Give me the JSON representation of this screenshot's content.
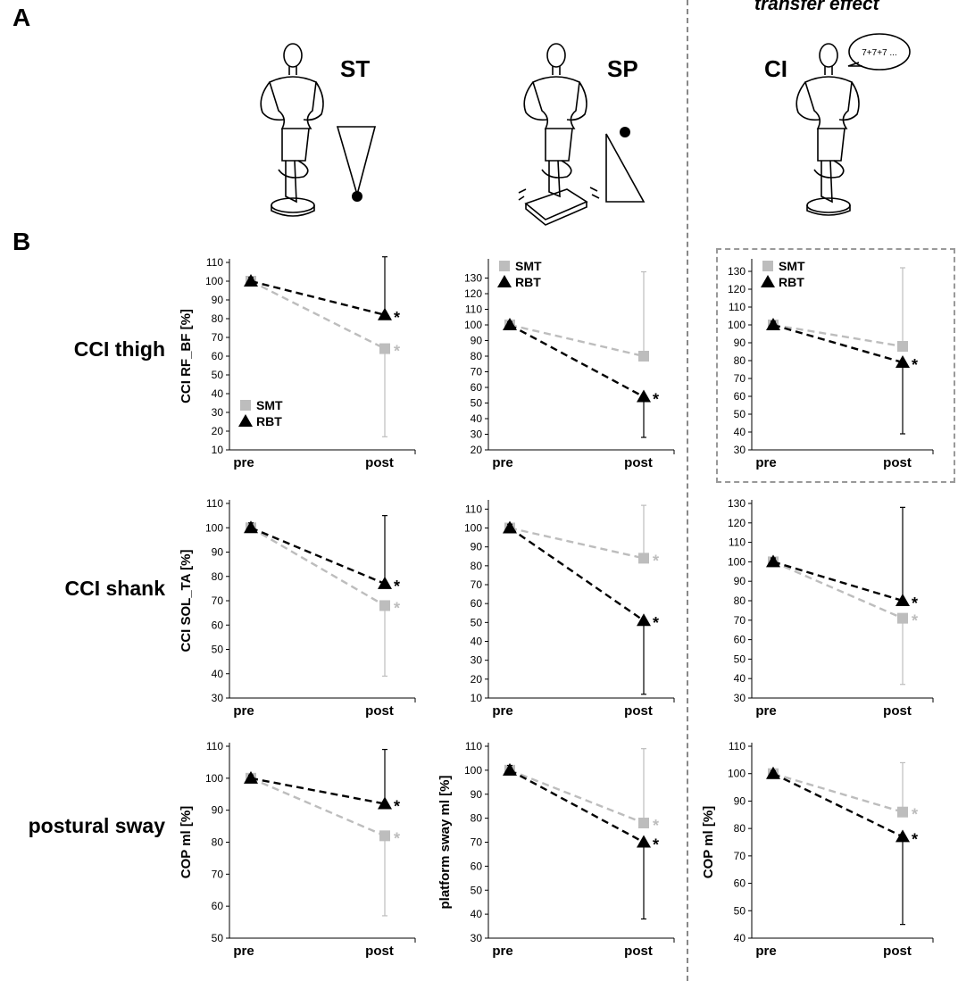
{
  "panel_labels": {
    "a": "A",
    "b": "B"
  },
  "header": {
    "transfer_effect": "transfer effect",
    "conditions": [
      "ST",
      "SP",
      "CI"
    ],
    "speech_bubble": "7+7+7 ..."
  },
  "row_labels": [
    "CCI thigh",
    "CCI shank",
    "postural sway"
  ],
  "colors": {
    "smt": "#bdbdbd",
    "rbt": "#000000",
    "divider": "#888888"
  },
  "legend": {
    "smt": "SMT",
    "rbt": "RBT"
  },
  "chart_data": [
    {
      "id": "thigh-st",
      "type": "line",
      "categories": [
        "pre",
        "post"
      ],
      "ylabel": "CCI  RF_BF [%]",
      "ylim": [
        10,
        110
      ],
      "yticks": [
        10,
        20,
        30,
        40,
        50,
        60,
        70,
        80,
        90,
        100,
        110
      ],
      "legend_position": "bottom-left",
      "series": [
        {
          "name": "SMT",
          "values": [
            100,
            64
          ],
          "error_upper": [
            102,
            null
          ],
          "error_lower": [
            null,
            17
          ],
          "significant": [
            false,
            true
          ]
        },
        {
          "name": "RBT",
          "values": [
            100,
            82
          ],
          "error_upper": [
            102,
            113
          ],
          "error_lower": [
            null,
            null
          ],
          "significant": [
            false,
            true
          ]
        }
      ]
    },
    {
      "id": "thigh-sp",
      "type": "line",
      "categories": [
        "pre",
        "post"
      ],
      "ylabel": "",
      "ylim": [
        20,
        140
      ],
      "yticks": [
        20,
        30,
        40,
        50,
        60,
        70,
        80,
        90,
        100,
        110,
        120,
        130
      ],
      "legend_position": "top-left",
      "series": [
        {
          "name": "SMT",
          "values": [
            100,
            80
          ],
          "error_upper": [
            102,
            134
          ],
          "error_lower": [
            null,
            null
          ],
          "significant": [
            false,
            false
          ]
        },
        {
          "name": "RBT",
          "values": [
            100,
            54
          ],
          "error_upper": [
            102,
            null
          ],
          "error_lower": [
            null,
            28
          ],
          "significant": [
            false,
            true
          ]
        }
      ]
    },
    {
      "id": "thigh-ci",
      "type": "line",
      "categories": [
        "pre",
        "post"
      ],
      "ylabel": "",
      "ylim": [
        30,
        135
      ],
      "yticks": [
        30,
        40,
        50,
        60,
        70,
        80,
        90,
        100,
        110,
        120,
        130
      ],
      "legend_position": "top-left",
      "series": [
        {
          "name": "SMT",
          "values": [
            100,
            88
          ],
          "error_upper": [
            102,
            132
          ],
          "error_lower": [
            null,
            null
          ],
          "significant": [
            false,
            false
          ]
        },
        {
          "name": "RBT",
          "values": [
            100,
            79
          ],
          "error_upper": [
            102,
            null
          ],
          "error_lower": [
            null,
            39
          ],
          "significant": [
            false,
            true
          ]
        }
      ]
    },
    {
      "id": "shank-st",
      "type": "line",
      "categories": [
        "pre",
        "post"
      ],
      "ylabel": "CCI   SOL_TA [%]",
      "ylim": [
        30,
        110
      ],
      "yticks": [
        30,
        40,
        50,
        60,
        70,
        80,
        90,
        100,
        110
      ],
      "legend_position": "none",
      "series": [
        {
          "name": "SMT",
          "values": [
            100,
            68
          ],
          "error_upper": [
            102,
            null
          ],
          "error_lower": [
            null,
            39
          ],
          "significant": [
            false,
            true
          ]
        },
        {
          "name": "RBT",
          "values": [
            100,
            77
          ],
          "error_upper": [
            102,
            105
          ],
          "error_lower": [
            null,
            null
          ],
          "significant": [
            false,
            true
          ]
        }
      ]
    },
    {
      "id": "shank-sp",
      "type": "line",
      "categories": [
        "pre",
        "post"
      ],
      "ylabel": "",
      "ylim": [
        10,
        113
      ],
      "yticks": [
        10,
        20,
        30,
        40,
        50,
        60,
        70,
        80,
        90,
        100,
        110
      ],
      "legend_position": "none",
      "series": [
        {
          "name": "SMT",
          "values": [
            100,
            84
          ],
          "error_upper": [
            102,
            112
          ],
          "error_lower": [
            null,
            null
          ],
          "significant": [
            false,
            true
          ]
        },
        {
          "name": "RBT",
          "values": [
            100,
            51
          ],
          "error_upper": [
            102,
            null
          ],
          "error_lower": [
            null,
            12
          ],
          "significant": [
            false,
            true
          ]
        }
      ]
    },
    {
      "id": "shank-ci",
      "type": "line",
      "categories": [
        "pre",
        "post"
      ],
      "ylabel": "",
      "ylim": [
        30,
        130
      ],
      "yticks": [
        30,
        40,
        50,
        60,
        70,
        80,
        90,
        100,
        110,
        120,
        130
      ],
      "legend_position": "none",
      "series": [
        {
          "name": "SMT",
          "values": [
            100,
            71
          ],
          "error_upper": [
            102,
            null
          ],
          "error_lower": [
            null,
            37
          ],
          "significant": [
            false,
            true
          ]
        },
        {
          "name": "RBT",
          "values": [
            100,
            80
          ],
          "error_upper": [
            102,
            128
          ],
          "error_lower": [
            null,
            null
          ],
          "significant": [
            false,
            true
          ]
        }
      ]
    },
    {
      "id": "sway-st",
      "type": "line",
      "categories": [
        "pre",
        "post"
      ],
      "ylabel": "COP ml [%]",
      "ylim": [
        50,
        110
      ],
      "yticks": [
        50,
        60,
        70,
        80,
        90,
        100,
        110
      ],
      "legend_position": "none",
      "series": [
        {
          "name": "SMT",
          "values": [
            100,
            82
          ],
          "error_upper": [
            101,
            null
          ],
          "error_lower": [
            null,
            57
          ],
          "significant": [
            false,
            true
          ]
        },
        {
          "name": "RBT",
          "values": [
            100,
            92
          ],
          "error_upper": [
            101,
            109
          ],
          "error_lower": [
            null,
            null
          ],
          "significant": [
            false,
            true
          ]
        }
      ]
    },
    {
      "id": "sway-sp",
      "type": "line",
      "categories": [
        "pre",
        "post"
      ],
      "ylabel": "platform sway ml [%]",
      "ylim": [
        30,
        110
      ],
      "yticks": [
        30,
        40,
        50,
        60,
        70,
        80,
        90,
        100,
        110
      ],
      "legend_position": "none",
      "series": [
        {
          "name": "SMT",
          "values": [
            100,
            78
          ],
          "error_upper": [
            102,
            109
          ],
          "error_lower": [
            null,
            null
          ],
          "significant": [
            false,
            true
          ]
        },
        {
          "name": "RBT",
          "values": [
            100,
            70
          ],
          "error_upper": [
            102,
            null
          ],
          "error_lower": [
            null,
            38
          ],
          "significant": [
            false,
            true
          ]
        }
      ]
    },
    {
      "id": "sway-ci",
      "type": "line",
      "categories": [
        "pre",
        "post"
      ],
      "ylabel": "COP ml [%]",
      "ylim": [
        40,
        110
      ],
      "yticks": [
        40,
        50,
        60,
        70,
        80,
        90,
        100,
        110
      ],
      "legend_position": "none",
      "series": [
        {
          "name": "SMT",
          "values": [
            100,
            86
          ],
          "error_upper": [
            101,
            104
          ],
          "error_lower": [
            null,
            null
          ],
          "significant": [
            false,
            true
          ]
        },
        {
          "name": "RBT",
          "values": [
            100,
            77
          ],
          "error_upper": [
            101,
            null
          ],
          "error_lower": [
            null,
            45
          ],
          "significant": [
            false,
            true
          ]
        }
      ]
    }
  ]
}
